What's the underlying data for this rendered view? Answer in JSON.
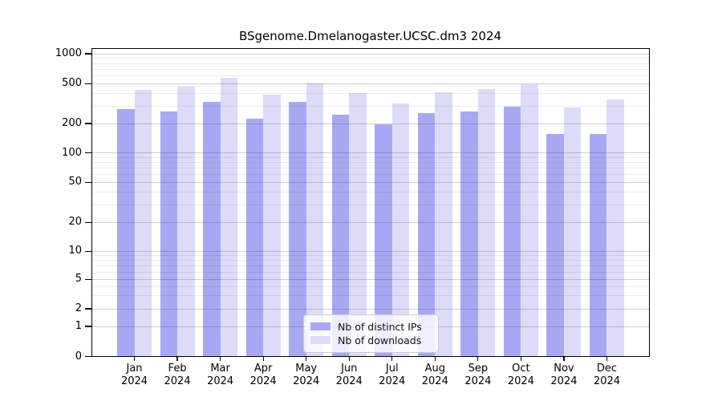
{
  "title": "BSgenome.Dmelanogaster.UCSC.dm3 2024",
  "colors": {
    "bar_distinct_ips": "#a8a8f2",
    "bar_downloads": "#dcdcf8",
    "axis": "#000000",
    "legend_border": "#cccccc"
  },
  "chart_data": {
    "type": "bar",
    "title": "BSgenome.Dmelanogaster.UCSC.dm3 2024",
    "categories": [
      "Jan",
      "Feb",
      "Mar",
      "Apr",
      "May",
      "Jun",
      "Jul",
      "Aug",
      "Sep",
      "Oct",
      "Nov",
      "Dec"
    ],
    "year_label": "2024",
    "series": [
      {
        "name": "Nb of distinct IPs",
        "color": "#a8a8f2",
        "values": [
          280,
          265,
          332,
          223,
          330,
          246,
          195,
          253,
          262,
          293,
          157,
          155
        ]
      },
      {
        "name": "Nb of downloads",
        "color": "#dcdcf8",
        "values": [
          432,
          466,
          568,
          386,
          505,
          403,
          320,
          410,
          445,
          496,
          289,
          346
        ]
      }
    ],
    "xlabel": "",
    "ylabel": "",
    "ylim": [
      0,
      1000
    ],
    "yscale": "log-like with 0 baseline",
    "yticks": [
      0,
      1,
      2,
      5,
      10,
      20,
      50,
      100,
      200,
      500,
      1000
    ],
    "minor_yticks": [
      3,
      4,
      6,
      7,
      8,
      9,
      30,
      40,
      60,
      70,
      80,
      90,
      300,
      400,
      600,
      700,
      800,
      900
    ],
    "grid": true,
    "grid_above_bars": true,
    "legend_position": "lower center"
  },
  "legend": {
    "items": [
      {
        "label": "Nb of distinct IPs",
        "color": "#a8a8f2"
      },
      {
        "label": "Nb of downloads",
        "color": "#dcdcf8"
      }
    ]
  }
}
